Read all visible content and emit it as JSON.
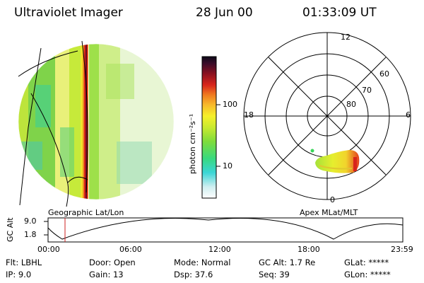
{
  "header": {
    "instrument": "Ultraviolet Imager",
    "date": "28 Jun 00",
    "time": "01:33:09 UT"
  },
  "colorbar": {
    "label": "photon cm⁻²s⁻¹",
    "ticks": [
      "100",
      "10"
    ]
  },
  "polar": {
    "mlt_labels": [
      "12",
      "18",
      "6",
      "0"
    ],
    "mlat_labels": [
      "60",
      "70",
      "80"
    ]
  },
  "captions": {
    "left": "Geographic Lat/Lon",
    "right": "Apex MLat/MLT"
  },
  "altitude_plot": {
    "ylabel": "GC Alt",
    "yticks": [
      "9.0",
      "1.8"
    ],
    "xticks": [
      "00:00",
      "06:00",
      "12:00",
      "18:00",
      "23:59"
    ]
  },
  "info": {
    "flt": "Flt: LBHL",
    "ip": "IP:  9.0",
    "door": "Door: Open",
    "gain": "Gain: 13",
    "mode": "Mode: Normal",
    "dsp": "Dsp:   37.6",
    "gcalt": "GC Alt: 1.7 Re",
    "seq": "Seq: 39",
    "glat": "GLat: *****",
    "glon": "GLon: *****"
  },
  "colors": {
    "line": "#000000",
    "marker": "#cc2222"
  }
}
